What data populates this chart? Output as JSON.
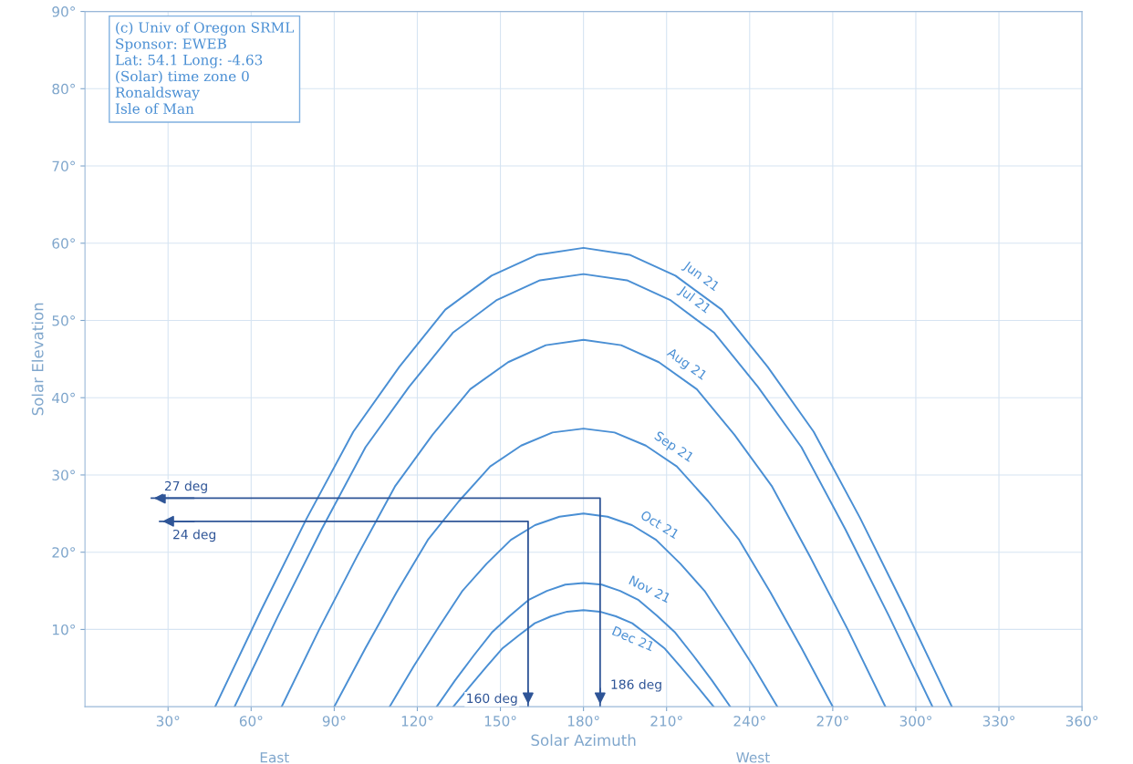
{
  "chart_data": {
    "type": "line",
    "xlabel": "Solar Azimuth",
    "ylabel": "Solar Elevation",
    "annotations": [
      "(c) Univ of Oregon SRML",
      "Sponsor: EWEB",
      "Lat: 54.1 Long: -4.63",
      "(Solar) time zone 0",
      "Ronaldsway",
      "Isle of Man",
      "East",
      "West",
      "27 deg",
      "24 deg",
      "160 deg",
      "186 deg"
    ],
    "xlim": [
      0,
      360
    ],
    "xticks": [
      {
        "value": 30,
        "label": "30°"
      },
      {
        "value": 60,
        "label": "60°"
      },
      {
        "value": 90,
        "label": "90°"
      },
      {
        "value": 120,
        "label": "120°"
      },
      {
        "value": 150,
        "label": "150°"
      },
      {
        "value": 180,
        "label": "180°"
      },
      {
        "value": 210,
        "label": "210°"
      },
      {
        "value": 240,
        "label": "240°"
      },
      {
        "value": 270,
        "label": "270°"
      },
      {
        "value": 300,
        "label": "300°"
      },
      {
        "value": 330,
        "label": "330°"
      },
      {
        "value": 360,
        "label": "360°"
      }
    ],
    "ylim": [
      0,
      90
    ],
    "yticks": [
      {
        "value": 10,
        "label": "10°"
      },
      {
        "value": 20,
        "label": "20°"
      },
      {
        "value": 30,
        "label": "30°"
      },
      {
        "value": 40,
        "label": "40°"
      },
      {
        "value": 50,
        "label": "50°"
      },
      {
        "value": 60,
        "label": "60°"
      },
      {
        "value": 70,
        "label": "70°"
      },
      {
        "value": 80,
        "label": "80°"
      },
      {
        "value": 90,
        "label": "90°"
      }
    ],
    "grid": true,
    "series": [
      {
        "name": "Jun 21",
        "color": "#4a8fd4",
        "x": [
          47,
          63.6,
          80.1,
          96.9,
          113.5,
          130.1,
          146.8,
          163.4,
          180,
          196.6,
          213.2,
          229.9,
          246.5,
          263.1,
          279.9,
          296.4,
          313
        ],
        "values": [
          0,
          12.5,
          24.4,
          35.6,
          44,
          51.4,
          55.8,
          58.5,
          59.4,
          58.5,
          55.8,
          51.4,
          44,
          35.6,
          24.4,
          12.5,
          0
        ]
      },
      {
        "name": "Jul 21",
        "color": "#4a8fd4",
        "x": [
          54,
          69.8,
          85.5,
          101.3,
          117,
          132.8,
          148.5,
          164.3,
          180,
          195.7,
          211.5,
          227.2,
          243,
          258.7,
          274.5,
          290.2,
          306
        ],
        "values": [
          0,
          11.8,
          23,
          33.6,
          41.4,
          48.4,
          52.6,
          55.2,
          56,
          55.2,
          52.6,
          48.4,
          41.4,
          33.6,
          23,
          11.8,
          0
        ]
      },
      {
        "name": "Aug 21",
        "color": "#4a8fd4",
        "x": [
          71,
          84.6,
          98.3,
          111.9,
          125.5,
          139.1,
          152.8,
          166.4,
          180,
          193.6,
          207.2,
          220.9,
          234.5,
          248.1,
          261.7,
          275.4,
          289
        ],
        "values": [
          0,
          10,
          19.5,
          28.5,
          35.2,
          41.1,
          44.6,
          46.8,
          47.5,
          46.8,
          44.6,
          41.1,
          35.2,
          28.5,
          19.5,
          10,
          0
        ]
      },
      {
        "name": "Sep 21",
        "color": "#4a8fd4",
        "x": [
          90,
          101.3,
          112.5,
          123.8,
          135,
          146.3,
          157.5,
          168.8,
          180,
          191.2,
          202.5,
          213.7,
          225,
          236.2,
          247.5,
          258.7,
          270
        ],
        "values": [
          0,
          7.6,
          14.8,
          21.6,
          26.6,
          31.1,
          33.8,
          35.5,
          36,
          35.5,
          33.8,
          31.1,
          26.6,
          21.6,
          14.8,
          7.6,
          0
        ]
      },
      {
        "name": "Oct 21",
        "color": "#4a8fd4",
        "x": [
          110,
          118.8,
          127.5,
          136.3,
          145,
          153.8,
          162.5,
          171.3,
          180,
          188.7,
          197.5,
          206.2,
          215,
          223.7,
          232.5,
          241.2,
          250
        ],
        "values": [
          0,
          5.3,
          10.2,
          15,
          18.5,
          21.6,
          23.5,
          24.6,
          25,
          24.6,
          23.5,
          21.6,
          18.5,
          15,
          10.2,
          5.3,
          0
        ]
      },
      {
        "name": "Nov 21",
        "color": "#4a8fd4",
        "x": [
          127,
          133.6,
          140.3,
          146.9,
          153.5,
          160.1,
          166.8,
          173.4,
          180,
          186.6,
          193.2,
          199.9,
          206.5,
          213.1,
          219.7,
          226.4,
          233
        ],
        "values": [
          0,
          3.4,
          6.6,
          9.6,
          11.8,
          13.8,
          15,
          15.8,
          16,
          15.8,
          15,
          13.8,
          11.8,
          9.6,
          6.6,
          3.4,
          0
        ]
      },
      {
        "name": "Dec 21",
        "color": "#4a8fd4",
        "x": [
          133,
          138.9,
          144.8,
          150.6,
          156.5,
          162.4,
          168.3,
          174.1,
          180,
          185.9,
          191.7,
          197.6,
          203.5,
          209.4,
          215.2,
          221.1,
          227
        ],
        "values": [
          0,
          2.6,
          5.1,
          7.5,
          9.2,
          10.8,
          11.7,
          12.3,
          12.5,
          12.3,
          11.7,
          10.8,
          9.2,
          7.5,
          5.1,
          2.6,
          0
        ]
      },
      {
        "type": "line",
        "color": "#2f5597",
        "x": [
          24,
          186,
          186
        ],
        "values": [
          27,
          27,
          0
        ]
      },
      {
        "type": "line",
        "color": "#2f5597",
        "x": [
          27,
          160,
          160
        ],
        "values": [
          24,
          24,
          0
        ]
      }
    ]
  }
}
